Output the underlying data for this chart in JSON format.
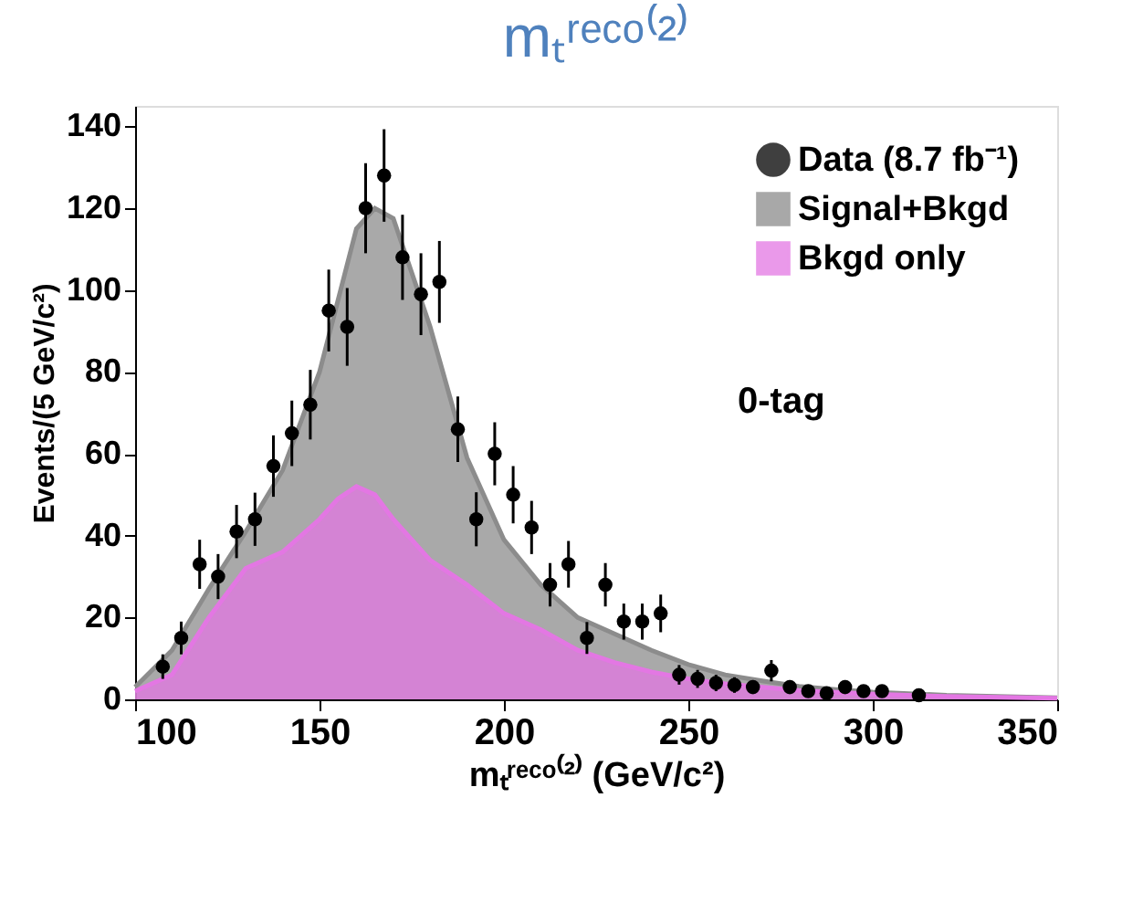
{
  "chart_data": {
    "type": "area",
    "title": "mₜʳᵉᶜᵒ⁽²⁾",
    "xlabel": "mₜʳᵉᶜᵒ⁽²⁾ (GeV/c²)",
    "ylabel": "Events/(5 GeV/c²)",
    "xlim": [
      100,
      350
    ],
    "xticks": [
      100,
      150,
      200,
      250,
      300,
      350
    ],
    "ylim": [
      0,
      145
    ],
    "yticks": [
      0,
      20,
      40,
      60,
      80,
      100,
      120,
      140
    ],
    "grid": false,
    "legend": "top right",
    "annotations": [
      "0-tag"
    ],
    "series": [
      {
        "name": "Data (8.7 fb⁻¹)",
        "type": "scatter",
        "color": "#000000",
        "marker": "circle",
        "x": [
          107.5,
          112.5,
          117.5,
          122.5,
          127.5,
          132.5,
          137.5,
          142.5,
          147.5,
          152.5,
          157.5,
          162.5,
          167.5,
          172.5,
          177.5,
          182.5,
          187.5,
          192.5,
          197.5,
          202.5,
          207.5,
          212.5,
          217.5,
          222.5,
          227.5,
          232.5,
          237.5,
          242.5,
          247.5,
          252.5,
          257.5,
          262.5,
          267.5,
          272.5,
          277.5,
          282.5,
          287.5,
          292.5,
          297.5,
          302.5,
          312.5
        ],
        "values": [
          8,
          15,
          33,
          30,
          41,
          44,
          57,
          65,
          72,
          95,
          91,
          120,
          128,
          108,
          99,
          102,
          66,
          44,
          60,
          50,
          42,
          28,
          33,
          15,
          28,
          19,
          19,
          21,
          6,
          5,
          4,
          3.5,
          3,
          7,
          3,
          2,
          1.5,
          3,
          2,
          2,
          1
        ],
        "errors": [
          3,
          4,
          6,
          5.5,
          6.5,
          6.5,
          7.5,
          8,
          8.5,
          10,
          9.5,
          11,
          11.3,
          10.4,
          10,
          10,
          8,
          6.6,
          7.7,
          7,
          6.5,
          5.3,
          5.7,
          3.9,
          5.3,
          4.4,
          4.4,
          4.6,
          2.4,
          2.2,
          2,
          1.9,
          1.7,
          2.6,
          1.7,
          1.4,
          1.2,
          1.7,
          1.4,
          1.4,
          1
        ]
      },
      {
        "name": "Signal+Bkgd",
        "color": "#8c8c8c",
        "x": [
          100,
          110,
          120,
          130,
          140,
          150,
          160,
          165,
          170,
          180,
          190,
          200,
          210,
          220,
          230,
          240,
          250,
          260,
          270,
          280,
          290,
          300,
          320,
          350
        ],
        "values": [
          3,
          12,
          27,
          41,
          56,
          80,
          115,
          120,
          117.5,
          91,
          59,
          39,
          28,
          20,
          16,
          12,
          8.5,
          6,
          4.5,
          3.2,
          2.4,
          1.8,
          1,
          0.4
        ]
      },
      {
        "name": "Bkgd only",
        "color": "#e377e3",
        "x": [
          100,
          110,
          120,
          130,
          140,
          150,
          155,
          160,
          165,
          170,
          180,
          190,
          200,
          210,
          220,
          230,
          240,
          250,
          260,
          280,
          300,
          320,
          350
        ],
        "values": [
          2,
          6,
          20,
          32,
          36,
          44,
          49,
          52,
          50,
          44,
          34,
          28,
          21,
          17,
          12,
          9,
          6.7,
          5,
          3.8,
          2.2,
          1.3,
          0.7,
          0.3
        ]
      }
    ]
  }
}
